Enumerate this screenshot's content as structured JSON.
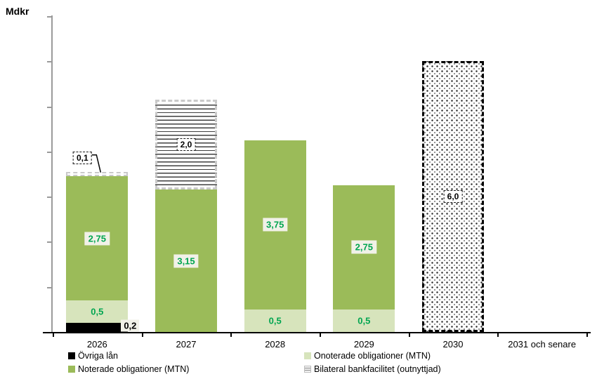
{
  "chart_data": {
    "type": "bar",
    "stacked": true,
    "title": "Mdkr",
    "y_axis": {
      "title": "Mdkr",
      "min": 0,
      "max": 7,
      "tick_interval": 1,
      "tick_labels_visible": false,
      "grid": false
    },
    "categories": [
      "2026",
      "2027",
      "2028",
      "2029",
      "2030",
      "2031 och senare"
    ],
    "series": [
      {
        "name": "Övriga lån",
        "key": "ovriga",
        "values": [
          0.2,
          0,
          0,
          0,
          0,
          0
        ]
      },
      {
        "name": "Onoterade obligationer (MTN)",
        "key": "onoterade",
        "values": [
          0.5,
          0,
          0.5,
          0.5,
          0,
          0
        ]
      },
      {
        "name": "Noterade obligationer (MTN)",
        "key": "noterade",
        "values": [
          2.75,
          3.15,
          3.75,
          2.75,
          0,
          0
        ]
      },
      {
        "name": "Bilateral bankfacilitet (outnyttjad)",
        "key": "bilateral",
        "values": [
          0.1,
          2.0,
          0,
          0,
          0,
          0
        ]
      },
      {
        "name": "",
        "key": "dotted",
        "values": [
          0,
          0,
          0,
          0,
          6.0,
          0
        ],
        "in_legend": false
      }
    ],
    "bars": [
      {
        "category": "2026",
        "segments": [
          {
            "style": "ovriga",
            "value": 0.2,
            "label": "0,2",
            "label_style": "box-right"
          },
          {
            "style": "onoterade",
            "value": 0.5,
            "label": "0,5",
            "label_style": "plain"
          },
          {
            "style": "noterade",
            "value": 2.75,
            "label": "2,75",
            "label_style": "box"
          },
          {
            "style": "bilateral",
            "value": 0.1,
            "label": "0,1",
            "label_style": "callout"
          }
        ]
      },
      {
        "category": "2027",
        "segments": [
          {
            "style": "noterade",
            "value": 3.15,
            "label": "3,15",
            "label_style": "box"
          },
          {
            "style": "bilateral",
            "value": 2.0,
            "label": "2,0",
            "label_style": "box-dashed"
          }
        ]
      },
      {
        "category": "2028",
        "segments": [
          {
            "style": "onoterade",
            "value": 0.5,
            "label": "0,5",
            "label_style": "plain"
          },
          {
            "style": "noterade",
            "value": 3.75,
            "label": "3,75",
            "label_style": "box"
          }
        ]
      },
      {
        "category": "2029",
        "segments": [
          {
            "style": "onoterade",
            "value": 0.5,
            "label": "0,5",
            "label_style": "plain"
          },
          {
            "style": "noterade",
            "value": 2.75,
            "label": "2,75",
            "label_style": "box"
          }
        ]
      },
      {
        "category": "2030",
        "segments": [
          {
            "style": "dotted",
            "value": 6.0,
            "label": "6,0",
            "label_style": "box-dashed"
          }
        ]
      },
      {
        "category": "2031 och senare",
        "segments": []
      }
    ],
    "legend": {
      "columns": 2,
      "items": [
        {
          "label": "Övriga lån",
          "key": "ovriga"
        },
        {
          "label": "Onoterade obligationer (MTN)",
          "key": "onoterade"
        },
        {
          "label": "Noterade obligationer (MTN)",
          "key": "noterade"
        },
        {
          "label": "Bilateral bankfacilitet (outnyttjad)",
          "key": "bilateral"
        }
      ]
    },
    "colors": {
      "noterade": "#9BBB59",
      "onoterade": "#D7E4BC",
      "ovriga": "#000000",
      "label_green": "#00A550",
      "label_bg": "#F1F1E8",
      "hatch_border": "#C9C9C9",
      "axis_gray": "#9A9A9A",
      "axis_black": "#000000"
    }
  }
}
